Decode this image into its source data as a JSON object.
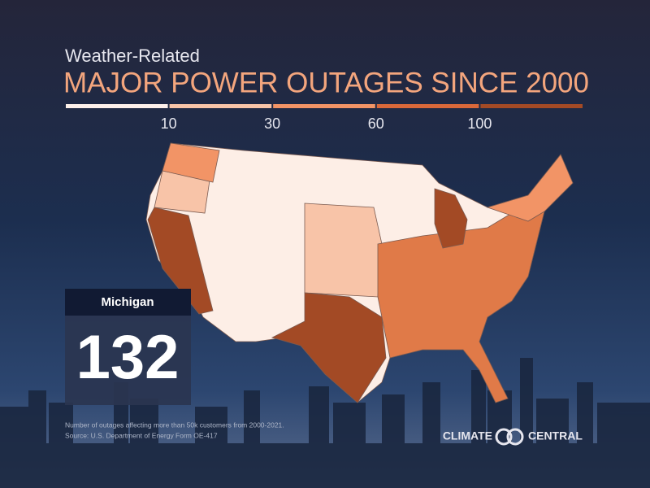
{
  "header": {
    "subtitle": "Weather-Related",
    "title": "MAJOR POWER OUTAGES SINCE 2000"
  },
  "legend": {
    "colors": [
      "#fdf0ea",
      "#f8c4a8",
      "#f29466",
      "#d9683a",
      "#a34a25"
    ],
    "ticks": [
      10,
      30,
      60,
      100
    ]
  },
  "callout": {
    "state": "Michigan",
    "value": 132
  },
  "footnote": [
    "Number of outages affecting more than 50k customers from 2000-2021.",
    "Source: U.S. Department of Energy Form OE-417"
  ],
  "logo": {
    "left": "CLIMATE",
    "right": "CENTRAL"
  }
}
